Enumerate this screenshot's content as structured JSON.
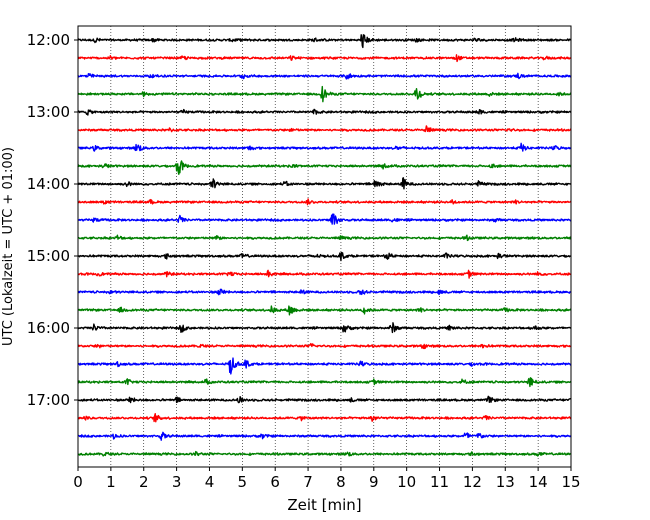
{
  "chart_data": {
    "type": "line",
    "title": "",
    "xlabel": "Zeit  [min]",
    "ylabel": "UTC (Lokalzeit = UTC + 01:00)",
    "xlim": [
      0,
      15
    ],
    "xticks": [
      "0",
      "1",
      "2",
      "3",
      "4",
      "5",
      "6",
      "7",
      "8",
      "9",
      "10",
      "11",
      "12",
      "13",
      "14",
      "15"
    ],
    "ytick_labels": [
      {
        "label": "12:00",
        "row": 0
      },
      {
        "label": "13:00",
        "row": 4
      },
      {
        "label": "14:00",
        "row": 8
      },
      {
        "label": "15:00",
        "row": 12
      },
      {
        "label": "16:00",
        "row": 16
      },
      {
        "label": "17:00",
        "row": 20
      }
    ],
    "grid": "vertical dotted lines at each minute",
    "legend": "none",
    "row_interval_minutes": 15,
    "start_time": "12:00",
    "colors": [
      "#000000",
      "#ff0000",
      "#0000ff",
      "#008000"
    ],
    "traces": [
      {
        "start": "12:00",
        "color": "#000000",
        "events": [
          [
            0.55,
            0.2
          ],
          [
            2.3,
            0.15
          ],
          [
            4.7,
            0.15
          ],
          [
            7.2,
            0.15
          ],
          [
            8.65,
            0.85
          ],
          [
            10.3,
            0.15
          ],
          [
            12.1,
            0.2
          ],
          [
            13.3,
            0.15
          ]
        ]
      },
      {
        "start": "12:15",
        "color": "#ff0000",
        "events": [
          [
            1.0,
            0.15
          ],
          [
            3.2,
            0.15
          ],
          [
            6.5,
            0.15
          ],
          [
            11.5,
            0.3
          ],
          [
            14.2,
            0.15
          ]
        ]
      },
      {
        "start": "12:30",
        "color": "#0000ff",
        "events": [
          [
            0.3,
            0.25
          ],
          [
            2.2,
            0.15
          ],
          [
            5.0,
            0.2
          ],
          [
            8.2,
            0.3
          ],
          [
            13.4,
            0.2
          ]
        ]
      },
      {
        "start": "12:45",
        "color": "#008000",
        "events": [
          [
            2.0,
            0.15
          ],
          [
            7.45,
            0.7
          ],
          [
            10.3,
            0.8
          ],
          [
            12.5,
            0.15
          ],
          [
            14.6,
            0.15
          ]
        ]
      },
      {
        "start": "13:00",
        "color": "#000000",
        "events": [
          [
            0.3,
            0.2
          ],
          [
            3.2,
            0.15
          ],
          [
            7.2,
            0.2
          ],
          [
            12.2,
            0.2
          ]
        ]
      },
      {
        "start": "13:15",
        "color": "#ff0000",
        "events": [
          [
            2.8,
            0.15
          ],
          [
            6.5,
            0.15
          ],
          [
            10.6,
            0.4
          ],
          [
            13.1,
            0.15
          ]
        ]
      },
      {
        "start": "13:30",
        "color": "#0000ff",
        "events": [
          [
            0.5,
            0.2
          ],
          [
            1.8,
            0.5
          ],
          [
            5.2,
            0.2
          ],
          [
            9.7,
            0.15
          ],
          [
            13.5,
            0.4
          ],
          [
            14.5,
            0.2
          ]
        ]
      },
      {
        "start": "13:45",
        "color": "#008000",
        "events": [
          [
            0.8,
            0.2
          ],
          [
            3.05,
            1.0
          ],
          [
            6.5,
            0.15
          ],
          [
            9.3,
            0.2
          ],
          [
            12.6,
            0.15
          ]
        ]
      },
      {
        "start": "14:00",
        "color": "#000000",
        "events": [
          [
            1.5,
            0.2
          ],
          [
            4.1,
            0.55
          ],
          [
            6.3,
            0.2
          ],
          [
            9.05,
            0.55
          ],
          [
            9.9,
            0.55
          ],
          [
            12.2,
            0.2
          ]
        ]
      },
      {
        "start": "14:15",
        "color": "#ff0000",
        "events": [
          [
            0.8,
            0.15
          ],
          [
            2.2,
            0.15
          ],
          [
            7.0,
            0.2
          ],
          [
            11.4,
            0.2
          ],
          [
            13.3,
            0.15
          ]
        ]
      },
      {
        "start": "14:30",
        "color": "#0000ff",
        "events": [
          [
            0.5,
            0.2
          ],
          [
            3.1,
            0.35
          ],
          [
            7.75,
            0.9
          ],
          [
            9.6,
            0.2
          ],
          [
            12.7,
            0.15
          ]
        ]
      },
      {
        "start": "14:45",
        "color": "#008000",
        "events": [
          [
            1.2,
            0.2
          ],
          [
            4.2,
            0.2
          ],
          [
            8.0,
            0.15
          ],
          [
            11.8,
            0.2
          ]
        ]
      },
      {
        "start": "15:00",
        "color": "#000000",
        "events": [
          [
            2.7,
            0.2
          ],
          [
            5.0,
            0.2
          ],
          [
            7.2,
            0.2
          ],
          [
            8.0,
            0.4
          ],
          [
            9.4,
            0.35
          ],
          [
            11.2,
            0.2
          ],
          [
            12.8,
            0.2
          ]
        ]
      },
      {
        "start": "15:15",
        "color": "#ff0000",
        "events": [
          [
            0.6,
            0.15
          ],
          [
            2.7,
            0.2
          ],
          [
            4.6,
            0.25
          ],
          [
            5.8,
            0.3
          ],
          [
            11.9,
            0.3
          ],
          [
            14.0,
            0.15
          ]
        ]
      },
      {
        "start": "15:30",
        "color": "#0000ff",
        "events": [
          [
            1.0,
            0.15
          ],
          [
            4.3,
            0.35
          ],
          [
            6.8,
            0.2
          ],
          [
            8.6,
            0.3
          ],
          [
            11.0,
            0.2
          ]
        ]
      },
      {
        "start": "15:45",
        "color": "#008000",
        "events": [
          [
            1.3,
            0.2
          ],
          [
            5.9,
            0.3
          ],
          [
            6.45,
            0.55
          ],
          [
            8.7,
            0.35
          ],
          [
            10.4,
            0.2
          ],
          [
            13.0,
            0.15
          ]
        ]
      },
      {
        "start": "16:00",
        "color": "#000000",
        "events": [
          [
            0.5,
            0.3
          ],
          [
            3.15,
            0.35
          ],
          [
            8.1,
            0.45
          ],
          [
            9.55,
            0.55
          ],
          [
            11.3,
            0.2
          ],
          [
            13.9,
            0.2
          ]
        ]
      },
      {
        "start": "16:15",
        "color": "#ff0000",
        "events": [
          [
            0.6,
            0.15
          ],
          [
            3.7,
            0.15
          ],
          [
            7.1,
            0.2
          ],
          [
            10.5,
            0.2
          ],
          [
            12.3,
            0.2
          ]
        ]
      },
      {
        "start": "16:30",
        "color": "#0000ff",
        "events": [
          [
            1.2,
            0.2
          ],
          [
            4.65,
            1.0
          ],
          [
            5.1,
            0.4
          ],
          [
            8.6,
            0.2
          ],
          [
            12.0,
            0.15
          ]
        ]
      },
      {
        "start": "16:45",
        "color": "#008000",
        "events": [
          [
            1.5,
            0.25
          ],
          [
            3.9,
            0.2
          ],
          [
            9.0,
            0.2
          ],
          [
            11.7,
            0.2
          ],
          [
            13.75,
            0.45
          ]
        ]
      },
      {
        "start": "17:00",
        "color": "#000000",
        "events": [
          [
            1.6,
            0.25
          ],
          [
            3.0,
            0.2
          ],
          [
            4.9,
            0.3
          ],
          [
            8.3,
            0.15
          ],
          [
            12.5,
            0.3
          ],
          [
            15.0,
            0.2
          ]
        ]
      },
      {
        "start": "17:15",
        "color": "#ff0000",
        "events": [
          [
            0.2,
            0.2
          ],
          [
            2.35,
            0.35
          ],
          [
            6.8,
            0.15
          ],
          [
            8.95,
            0.35
          ],
          [
            12.4,
            0.2
          ]
        ]
      },
      {
        "start": "17:30",
        "color": "#0000ff",
        "events": [
          [
            1.1,
            0.2
          ],
          [
            2.55,
            0.35
          ],
          [
            5.6,
            0.2
          ],
          [
            11.8,
            0.35
          ],
          [
            12.2,
            0.3
          ]
        ]
      },
      {
        "start": "17:45",
        "color": "#008000",
        "events": [
          [
            0.8,
            0.2
          ],
          [
            3.6,
            0.15
          ],
          [
            8.2,
            0.2
          ],
          [
            12.0,
            0.15
          ],
          [
            14.0,
            0.15
          ]
        ]
      }
    ]
  }
}
